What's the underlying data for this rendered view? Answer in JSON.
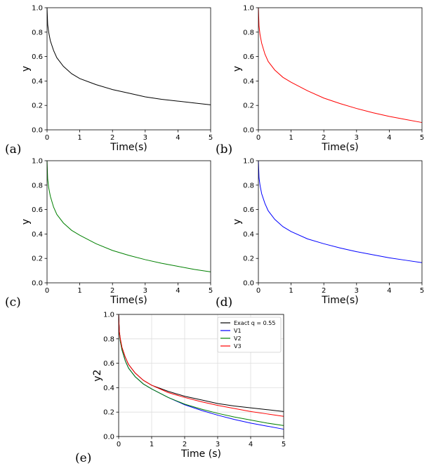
{
  "chart_data": [
    {
      "panel": "(a)",
      "type": "line",
      "xlabel": "Time(s)",
      "ylabel": "y",
      "xlim": [
        0,
        5
      ],
      "ylim": [
        0,
        1.0
      ],
      "xticks": [
        "0",
        "1",
        "2",
        "3",
        "4",
        "5"
      ],
      "yticks": [
        "0.0",
        "0.2",
        "0.4",
        "0.6",
        "0.8",
        "1.0"
      ],
      "grid": false,
      "series": [
        {
          "color": "#000000",
          "x": [
            0,
            0.02,
            0.05,
            0.1,
            0.2,
            0.3,
            0.5,
            0.75,
            1,
            1.5,
            2,
            2.5,
            3,
            3.5,
            4,
            4.5,
            5
          ],
          "y": [
            1.0,
            0.86,
            0.8,
            0.73,
            0.65,
            0.59,
            0.52,
            0.46,
            0.42,
            0.37,
            0.33,
            0.3,
            0.27,
            0.25,
            0.235,
            0.22,
            0.205
          ]
        }
      ]
    },
    {
      "panel": "(b)",
      "type": "line",
      "xlabel": "Time(s)",
      "ylabel": "y",
      "xlim": [
        0,
        5
      ],
      "ylim": [
        0,
        1.0
      ],
      "xticks": [
        "0",
        "1",
        "2",
        "3",
        "4",
        "5"
      ],
      "yticks": [
        "0.0",
        "0.2",
        "0.4",
        "0.6",
        "0.8",
        "1.0"
      ],
      "grid": false,
      "series": [
        {
          "color": "#ff0000",
          "x": [
            0,
            0.02,
            0.05,
            0.1,
            0.2,
            0.3,
            0.5,
            0.75,
            1,
            1.5,
            2,
            2.5,
            3,
            3.5,
            4,
            4.5,
            5
          ],
          "y": [
            1.0,
            0.85,
            0.78,
            0.71,
            0.62,
            0.56,
            0.49,
            0.43,
            0.39,
            0.32,
            0.26,
            0.215,
            0.175,
            0.14,
            0.11,
            0.085,
            0.06
          ]
        }
      ]
    },
    {
      "panel": "(c)",
      "type": "line",
      "xlabel": "Time(s)",
      "ylabel": "y",
      "xlim": [
        0,
        5
      ],
      "ylim": [
        0,
        1.0
      ],
      "xticks": [
        "0",
        "1",
        "2",
        "3",
        "4",
        "5"
      ],
      "yticks": [
        "0.0",
        "0.2",
        "0.4",
        "0.6",
        "0.8",
        "1.0"
      ],
      "grid": false,
      "series": [
        {
          "color": "#008000",
          "x": [
            0,
            0.02,
            0.05,
            0.1,
            0.2,
            0.3,
            0.5,
            0.75,
            1,
            1.5,
            2,
            2.5,
            3,
            3.5,
            4,
            4.5,
            5
          ],
          "y": [
            1.0,
            0.85,
            0.78,
            0.71,
            0.62,
            0.56,
            0.49,
            0.43,
            0.39,
            0.32,
            0.265,
            0.225,
            0.19,
            0.16,
            0.135,
            0.11,
            0.09
          ]
        }
      ]
    },
    {
      "panel": "(d)",
      "type": "line",
      "xlabel": "Time(s)",
      "ylabel": "y",
      "xlim": [
        0,
        5
      ],
      "ylim": [
        0,
        1.0
      ],
      "xticks": [
        "0",
        "1",
        "2",
        "3",
        "4",
        "5"
      ],
      "yticks": [
        "0.0",
        "0.2",
        "0.4",
        "0.6",
        "0.8",
        "1.0"
      ],
      "grid": false,
      "series": [
        {
          "color": "#0000ff",
          "x": [
            0,
            0.02,
            0.05,
            0.1,
            0.2,
            0.3,
            0.5,
            0.75,
            1,
            1.5,
            2,
            2.5,
            3,
            3.5,
            4,
            4.5,
            5
          ],
          "y": [
            1.0,
            0.86,
            0.8,
            0.73,
            0.65,
            0.59,
            0.52,
            0.46,
            0.42,
            0.36,
            0.32,
            0.285,
            0.255,
            0.23,
            0.205,
            0.185,
            0.165
          ]
        }
      ]
    },
    {
      "panel": "(e)",
      "type": "line",
      "xlabel": "Time (s)",
      "ylabel": "y2",
      "xlim": [
        0,
        5
      ],
      "ylim": [
        0,
        1.0
      ],
      "xticks": [
        "0",
        "1",
        "2",
        "3",
        "4",
        "5"
      ],
      "yticks": [
        "0.0",
        "0.2",
        "0.4",
        "0.6",
        "0.8",
        "1.0"
      ],
      "grid": true,
      "legend": "top-right",
      "series": [
        {
          "name": "Exact q = 0.55",
          "color": "#000000",
          "x": [
            0,
            0.02,
            0.05,
            0.1,
            0.2,
            0.3,
            0.5,
            0.75,
            1,
            1.5,
            2,
            2.5,
            3,
            3.5,
            4,
            4.5,
            5
          ],
          "y": [
            1.0,
            0.86,
            0.8,
            0.73,
            0.65,
            0.59,
            0.52,
            0.46,
            0.42,
            0.37,
            0.33,
            0.3,
            0.27,
            0.25,
            0.235,
            0.22,
            0.205
          ]
        },
        {
          "name": "V1",
          "color": "#0000ff",
          "x": [
            0,
            0.02,
            0.05,
            0.1,
            0.2,
            0.3,
            0.5,
            0.75,
            1,
            1.5,
            2,
            2.5,
            3,
            3.5,
            4,
            4.5,
            5
          ],
          "y": [
            1.0,
            0.85,
            0.78,
            0.71,
            0.62,
            0.56,
            0.49,
            0.43,
            0.39,
            0.32,
            0.26,
            0.215,
            0.175,
            0.14,
            0.11,
            0.085,
            0.06
          ]
        },
        {
          "name": "V2",
          "color": "#008000",
          "x": [
            0,
            0.02,
            0.05,
            0.1,
            0.2,
            0.3,
            0.5,
            0.75,
            1,
            1.5,
            2,
            2.5,
            3,
            3.5,
            4,
            4.5,
            5
          ],
          "y": [
            1.0,
            0.85,
            0.78,
            0.71,
            0.62,
            0.56,
            0.49,
            0.43,
            0.39,
            0.32,
            0.265,
            0.225,
            0.19,
            0.16,
            0.135,
            0.11,
            0.09
          ]
        },
        {
          "name": "V3",
          "color": "#ff0000",
          "x": [
            0,
            0.02,
            0.05,
            0.1,
            0.2,
            0.3,
            0.5,
            0.75,
            1,
            1.5,
            2,
            2.5,
            3,
            3.5,
            4,
            4.5,
            5
          ],
          "y": [
            1.0,
            0.86,
            0.8,
            0.73,
            0.65,
            0.59,
            0.52,
            0.46,
            0.42,
            0.36,
            0.32,
            0.285,
            0.255,
            0.23,
            0.205,
            0.185,
            0.165
          ]
        }
      ]
    }
  ]
}
